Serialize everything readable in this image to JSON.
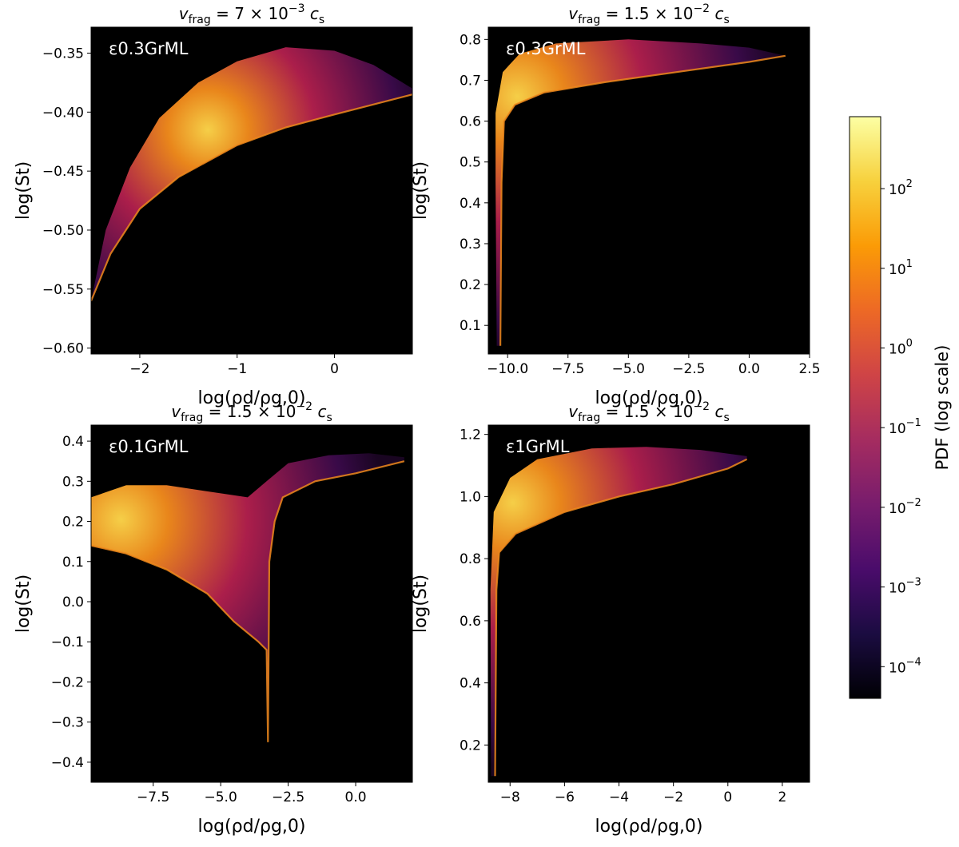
{
  "chart_data": [
    {
      "type": "heatmap",
      "title": "v_frag = 7 × 10^−3 c_s",
      "title_parts": {
        "v": "v",
        "sub": "frag",
        "eq": " = 7 × 10",
        "exp": "−3",
        "c": " c",
        "csub": "s"
      },
      "annotation": "ε0.3GrML",
      "xlabel": "log(ρd/ρg,0)",
      "ylabel": "log(St)",
      "xlim": [
        -2.5,
        0.8
      ],
      "ylim": [
        -0.605,
        -0.328
      ],
      "xticks": [
        -2,
        -1,
        0
      ],
      "xtick_labels": [
        "−2",
        "−1",
        "0"
      ],
      "yticks": [
        -0.35,
        -0.4,
        -0.45,
        -0.5,
        -0.55,
        -0.6
      ],
      "ytick_labels": [
        "−0.35",
        "−0.40",
        "−0.45",
        "−0.50",
        "−0.55",
        "−0.60"
      ],
      "lower_edge": [
        [
          -2.5,
          -0.56
        ],
        [
          -2.3,
          -0.52
        ],
        [
          -2.0,
          -0.482
        ],
        [
          -1.6,
          -0.455
        ],
        [
          -1.0,
          -0.428
        ],
        [
          -0.5,
          -0.413
        ],
        [
          0.0,
          -0.402
        ],
        [
          0.8,
          -0.385
        ]
      ],
      "upper_edge": [
        [
          -2.5,
          -0.56
        ],
        [
          -2.35,
          -0.5
        ],
        [
          -2.1,
          -0.447
        ],
        [
          -1.8,
          -0.405
        ],
        [
          -1.4,
          -0.375
        ],
        [
          -1.0,
          -0.357
        ],
        [
          -0.5,
          -0.345
        ],
        [
          0.0,
          -0.348
        ],
        [
          0.4,
          -0.36
        ],
        [
          0.8,
          -0.38
        ]
      ],
      "peak": [
        -1.3,
        -0.415
      ]
    },
    {
      "type": "heatmap",
      "title": "v_frag = 1.5 × 10^−2 c_s",
      "title_parts": {
        "v": "v",
        "sub": "frag",
        "eq": " = 1.5 × 10",
        "exp": "−2",
        "c": " c",
        "csub": "s"
      },
      "annotation": "ε0.3GrML",
      "xlabel": "log(ρd/ρg,0)",
      "ylabel": "log(St)",
      "xlim": [
        -10.8,
        2.5
      ],
      "ylim": [
        0.03,
        0.83
      ],
      "xticks": [
        -10.0,
        -7.5,
        -5.0,
        -2.5,
        0.0,
        2.5
      ],
      "xtick_labels": [
        "−10.0",
        "−7.5",
        "−5.0",
        "−2.5",
        "0.0",
        "2.5"
      ],
      "yticks": [
        0.1,
        0.2,
        0.3,
        0.4,
        0.5,
        0.6,
        0.7,
        0.8
      ],
      "ytick_labels": [
        "0.1",
        "0.2",
        "0.3",
        "0.4",
        "0.5",
        "0.6",
        "0.7",
        "0.8"
      ],
      "lower_edge": [
        [
          -10.3,
          0.05
        ],
        [
          -10.25,
          0.45
        ],
        [
          -10.15,
          0.6
        ],
        [
          -9.7,
          0.64
        ],
        [
          -8.5,
          0.67
        ],
        [
          -6.0,
          0.695
        ],
        [
          -3.0,
          0.72
        ],
        [
          0.0,
          0.745
        ],
        [
          1.5,
          0.76
        ]
      ],
      "upper_edge": [
        [
          -10.45,
          0.05
        ],
        [
          -10.5,
          0.45
        ],
        [
          -10.5,
          0.62
        ],
        [
          -10.2,
          0.72
        ],
        [
          -9.5,
          0.765
        ],
        [
          -8.0,
          0.79
        ],
        [
          -5.0,
          0.8
        ],
        [
          -2.0,
          0.79
        ],
        [
          0.0,
          0.78
        ],
        [
          1.5,
          0.76
        ]
      ],
      "peak": [
        -9.6,
        0.66
      ]
    },
    {
      "type": "heatmap",
      "title": "v_frag = 1.5 × 10^−2 c_s",
      "title_parts": {
        "v": "v",
        "sub": "frag",
        "eq": " = 1.5 × 10",
        "exp": "−2",
        "c": " c",
        "csub": "s"
      },
      "annotation": "ε0.1GrML",
      "xlabel": "log(ρd/ρg,0)",
      "ylabel": "log(St)",
      "xlim": [
        -9.8,
        2.1
      ],
      "ylim": [
        -0.45,
        0.44
      ],
      "xticks": [
        -7.5,
        -5.0,
        -2.5,
        0.0
      ],
      "xtick_labels": [
        "−7.5",
        "−5.0",
        "−2.5",
        "0.0"
      ],
      "yticks": [
        0.4,
        0.3,
        0.2,
        0.1,
        0.0,
        -0.1,
        -0.2,
        -0.3,
        -0.4
      ],
      "ytick_labels": [
        "0.4",
        "0.3",
        "0.2",
        "0.1",
        "0.0",
        "−0.1",
        "−0.2",
        "−0.3",
        "−0.4"
      ],
      "lower_edge": [
        [
          -9.8,
          0.14
        ],
        [
          -8.5,
          0.12
        ],
        [
          -7.0,
          0.08
        ],
        [
          -5.5,
          0.02
        ],
        [
          -4.5,
          -0.05
        ],
        [
          -3.6,
          -0.1
        ],
        [
          -3.3,
          -0.12
        ],
        [
          -3.25,
          -0.35
        ],
        [
          -3.2,
          0.1
        ],
        [
          -3.0,
          0.2
        ],
        [
          -2.7,
          0.26
        ],
        [
          -1.5,
          0.3
        ],
        [
          0.0,
          0.32
        ],
        [
          1.8,
          0.35
        ]
      ],
      "upper_edge": [
        [
          -9.8,
          0.26
        ],
        [
          -8.5,
          0.29
        ],
        [
          -7.0,
          0.29
        ],
        [
          -5.0,
          0.27
        ],
        [
          -4.0,
          0.26
        ],
        [
          -3.3,
          0.3
        ],
        [
          -2.5,
          0.345
        ],
        [
          -1.0,
          0.365
        ],
        [
          0.5,
          0.37
        ],
        [
          1.8,
          0.36
        ]
      ],
      "peak": [
        -8.7,
        0.205
      ]
    },
    {
      "type": "heatmap",
      "title": "v_frag = 1.5 × 10^−2 c_s",
      "title_parts": {
        "v": "v",
        "sub": "frag",
        "eq": " = 1.5 × 10",
        "exp": "−2",
        "c": " c",
        "csub": "s"
      },
      "annotation": "ε1GrML",
      "xlabel": "log(ρd/ρg,0)",
      "ylabel": "log(St)",
      "xlim": [
        -8.8,
        3.0
      ],
      "ylim": [
        0.08,
        1.23
      ],
      "xticks": [
        -8,
        -6,
        -4,
        -2,
        0,
        2
      ],
      "xtick_labels": [
        "−8",
        "−6",
        "−4",
        "−2",
        "0",
        "2"
      ],
      "yticks": [
        0.2,
        0.4,
        0.6,
        0.8,
        1.0,
        1.2
      ],
      "ytick_labels": [
        "0.2",
        "0.4",
        "0.6",
        "0.8",
        "1.0",
        "1.2"
      ],
      "lower_edge": [
        [
          -8.55,
          0.1
        ],
        [
          -8.5,
          0.7
        ],
        [
          -8.4,
          0.82
        ],
        [
          -7.8,
          0.88
        ],
        [
          -6.0,
          0.95
        ],
        [
          -4.0,
          1.0
        ],
        [
          -2.0,
          1.04
        ],
        [
          0.0,
          1.09
        ],
        [
          0.7,
          1.12
        ]
      ],
      "upper_edge": [
        [
          -8.7,
          0.1
        ],
        [
          -8.72,
          0.7
        ],
        [
          -8.6,
          0.95
        ],
        [
          -8.0,
          1.06
        ],
        [
          -7.0,
          1.12
        ],
        [
          -5.0,
          1.155
        ],
        [
          -3.0,
          1.16
        ],
        [
          -1.0,
          1.15
        ],
        [
          0.7,
          1.13
        ]
      ],
      "peak": [
        -7.9,
        0.98
      ]
    }
  ],
  "colorbar": {
    "label": "PDF (log scale)",
    "scale": "log",
    "range": [
      4e-05,
      800
    ],
    "ticks": [
      0.0001,
      0.001,
      0.01,
      0.1,
      1,
      10,
      100
    ],
    "tick_mantissa": "10",
    "tick_exponents": [
      "−4",
      "−3",
      "−2",
      "−1",
      "0",
      "1",
      "2"
    ],
    "colormap": "inferno",
    "colors": [
      "#000004",
      "#1b0c41",
      "#4a0c6b",
      "#781c6d",
      "#a52c60",
      "#cf4446",
      "#ed6925",
      "#fb9b06",
      "#f7d13d",
      "#fcffa4"
    ]
  },
  "colors": {
    "background": "#000000",
    "low": "#3a0a4a",
    "mid": "#b01f4d",
    "high": "#f08a1c",
    "peak": "#fdd54a"
  }
}
